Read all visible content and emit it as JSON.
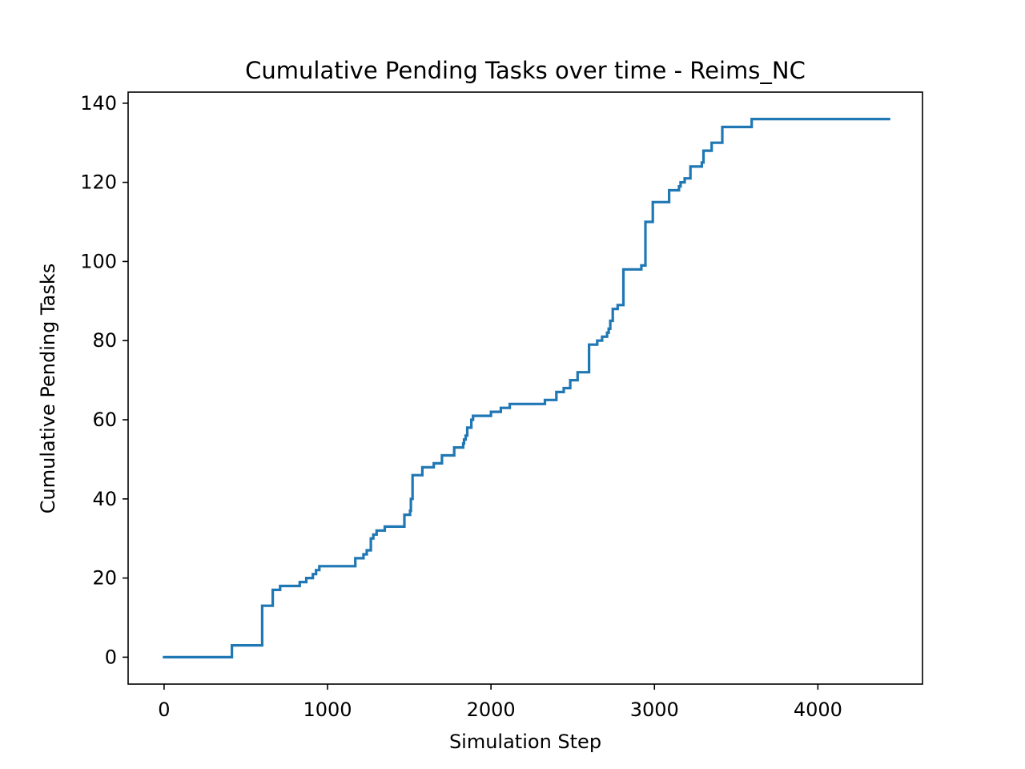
{
  "chart_data": {
    "type": "line",
    "title": "Cumulative Pending Tasks over time - Reims_NC",
    "xlabel": "Simulation Step",
    "ylabel": "Cumulative Pending Tasks",
    "xlim": [
      -220,
      4640
    ],
    "ylim": [
      -6.8,
      142.8
    ],
    "xticks": [
      0,
      1000,
      2000,
      3000,
      4000
    ],
    "xtick_labels": [
      "0",
      "1000",
      "2000",
      "3000",
      "4000"
    ],
    "yticks": [
      0,
      20,
      40,
      60,
      80,
      100,
      120,
      140
    ],
    "ytick_labels": [
      "0",
      "20",
      "40",
      "60",
      "80",
      "100",
      "120",
      "140"
    ],
    "grid": false,
    "line_color": "#1f77b4",
    "series": [
      {
        "step": true,
        "x": [
          0,
          415,
          600,
          665,
          710,
          830,
          870,
          910,
          930,
          950,
          1170,
          1200,
          1220,
          1240,
          1265,
          1280,
          1300,
          1330,
          1350,
          1470,
          1490,
          1505,
          1510,
          1520,
          1580,
          1600,
          1650,
          1700,
          1775,
          1810,
          1830,
          1835,
          1845,
          1855,
          1870,
          1880,
          1890,
          2000,
          2060,
          2115,
          2330,
          2400,
          2445,
          2470,
          2485,
          2530,
          2600,
          2650,
          2680,
          2700,
          2710,
          2720,
          2730,
          2745,
          2775,
          2810,
          2920,
          2945,
          2990,
          3090,
          3150,
          3160,
          3185,
          3220,
          3285,
          3290,
          3300,
          3350,
          3415,
          3595,
          4435
        ],
        "y": [
          0,
          3,
          13,
          17,
          18,
          19,
          20,
          21,
          22,
          23,
          25,
          25,
          26,
          27,
          30,
          31,
          32,
          32,
          33,
          36,
          36,
          37,
          40,
          46,
          48,
          48,
          49,
          51,
          53,
          53,
          54,
          55,
          56,
          58,
          58,
          60,
          61,
          62,
          63,
          64,
          65,
          67,
          68,
          68,
          70,
          72,
          79,
          80,
          81,
          81,
          82,
          83,
          85,
          88,
          89,
          98,
          99,
          110,
          115,
          118,
          119,
          120,
          121,
          124,
          124,
          125,
          128,
          130,
          134,
          136,
          136
        ]
      }
    ]
  }
}
